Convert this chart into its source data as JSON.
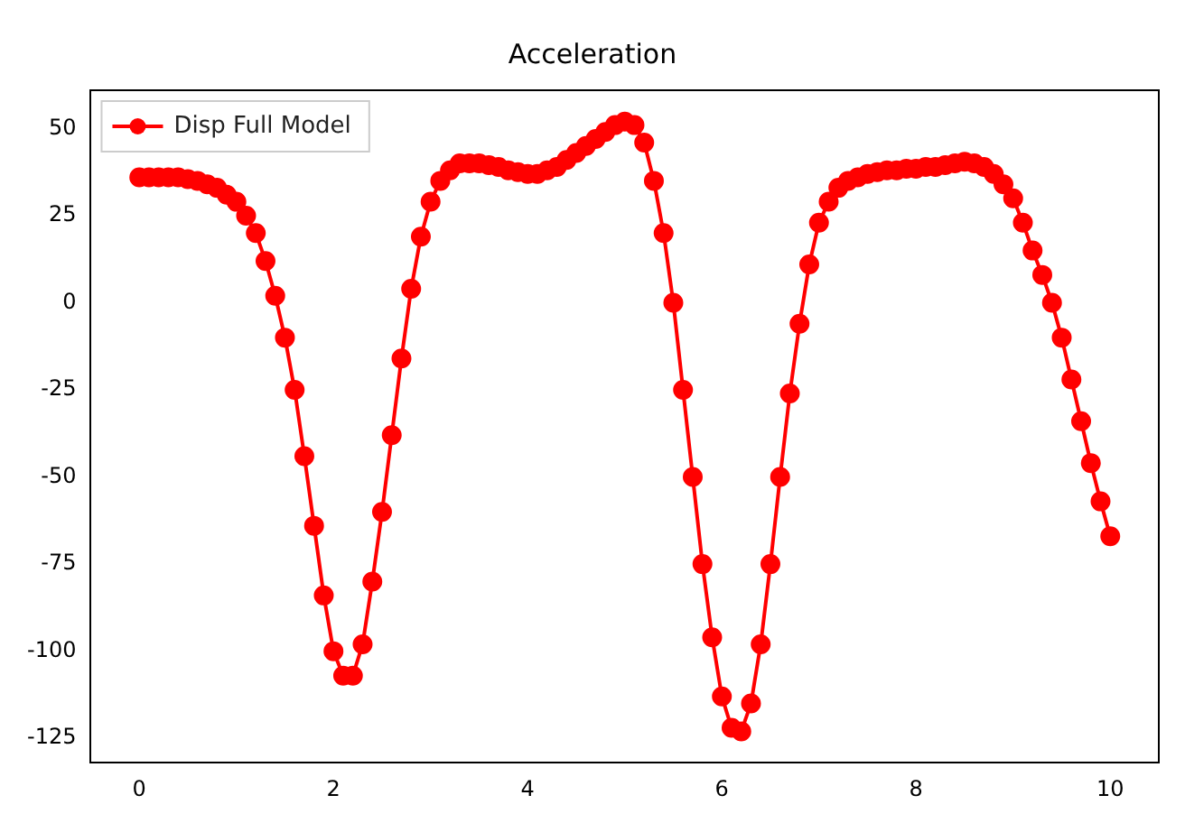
{
  "chart_data": {
    "type": "line",
    "title": "Acceleration",
    "x": [
      0,
      0.1,
      0.2,
      0.3,
      0.4,
      0.5,
      0.6,
      0.7,
      0.8,
      0.9,
      1.0,
      1.1,
      1.2,
      1.3,
      1.4,
      1.5,
      1.6,
      1.7,
      1.8,
      1.9,
      2.0,
      2.1,
      2.2,
      2.3,
      2.4,
      2.5,
      2.6,
      2.7,
      2.8,
      2.9,
      3.0,
      3.1,
      3.2,
      3.3,
      3.4,
      3.5,
      3.6,
      3.7,
      3.8,
      3.9,
      4.0,
      4.1,
      4.2,
      4.3,
      4.4,
      4.5,
      4.6,
      4.7,
      4.8,
      4.9,
      5.0,
      5.1,
      5.2,
      5.3,
      5.4,
      5.5,
      5.6,
      5.7,
      5.8,
      5.9,
      6.0,
      6.1,
      6.2,
      6.3,
      6.4,
      6.5,
      6.6,
      6.7,
      6.8,
      6.9,
      7.0,
      7.1,
      7.2,
      7.3,
      7.4,
      7.5,
      7.6,
      7.7,
      7.8,
      7.9,
      8.0,
      8.1,
      8.2,
      8.3,
      8.4,
      8.5,
      8.6,
      8.7,
      8.8,
      8.9,
      9.0,
      9.1,
      9.2,
      9.3,
      9.4,
      9.5,
      9.6,
      9.7,
      9.8,
      9.9,
      10.0
    ],
    "series": [
      {
        "name": "Disp Full Model",
        "color": "#ff0000",
        "values": [
          36,
          36,
          36,
          36,
          36,
          35.5,
          35,
          34,
          33,
          31,
          29,
          25,
          20,
          12,
          2,
          -10,
          -25,
          -44,
          -64,
          -84,
          -100,
          -107,
          -107,
          -98,
          -80,
          -60,
          -38,
          -16,
          4,
          19,
          29,
          35,
          38,
          40,
          40,
          40,
          39.5,
          39,
          38,
          37.5,
          37,
          37,
          38,
          39,
          41,
          43,
          45,
          47,
          49,
          51,
          52,
          51,
          46,
          35,
          20,
          0,
          -25,
          -50,
          -75,
          -96,
          -113,
          -122,
          -123,
          -115,
          -98,
          -75,
          -50,
          -26,
          -6,
          11,
          23,
          29,
          33,
          35,
          36,
          37,
          37.5,
          38,
          38,
          38.5,
          38.5,
          39,
          39,
          39.5,
          40,
          40.5,
          40,
          39,
          37,
          34,
          30,
          23,
          15,
          8,
          0,
          -10,
          -22,
          -34,
          -46,
          -57,
          -67
        ]
      }
    ],
    "xlim": [
      -0.5,
      10.5
    ],
    "ylim": [
      -132,
      61
    ],
    "xticks": [
      0,
      2,
      4,
      6,
      8,
      10
    ],
    "yticks": [
      -125,
      -100,
      -75,
      -50,
      -25,
      0,
      25,
      50
    ],
    "grid": false,
    "legend": "top left",
    "marker": "circle",
    "line_style": "solid"
  }
}
